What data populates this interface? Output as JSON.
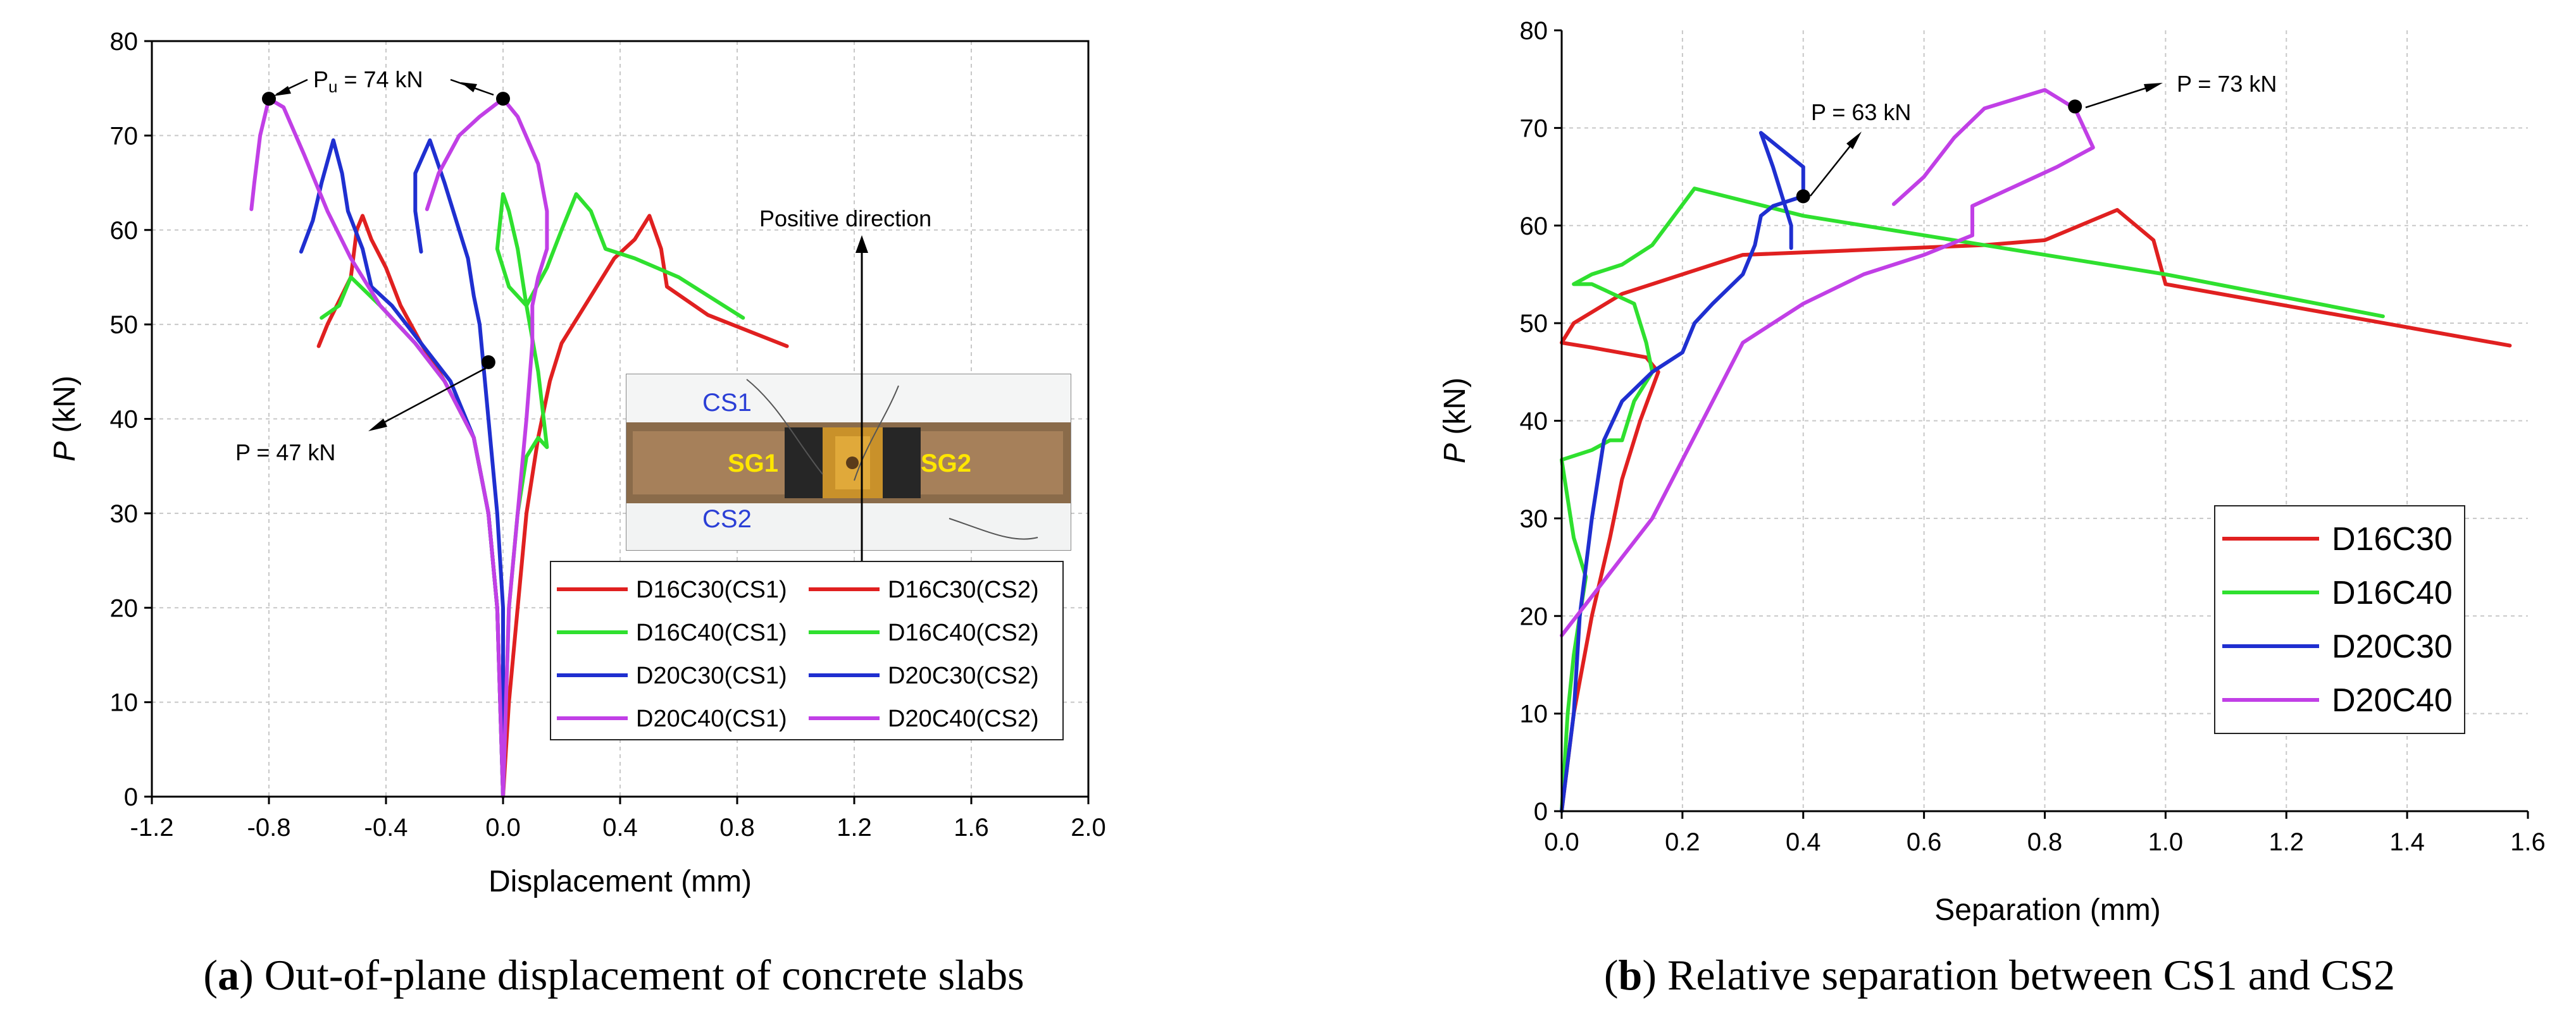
{
  "captions": {
    "a": {
      "letter": "a",
      "text": ") Out-of-plane displacement of concrete slabs"
    },
    "b": {
      "letter": "b",
      "text": ") Relative separation between CS1 and CS2"
    }
  },
  "colors": {
    "D16C30": "#e02020",
    "D16C40": "#2fe02f",
    "D20C30": "#1f2fd0",
    "D20C40": "#c13fe6"
  },
  "chart_data": [
    {
      "id": "a",
      "type": "line",
      "title": "",
      "xlabel": "Displacement (mm)",
      "ylabel_italic": "P",
      "ylabel_rest": " (kN)",
      "xlim": [
        -1.2,
        2.0
      ],
      "ylim": [
        0,
        80
      ],
      "xticks": [
        -1.2,
        -0.8,
        -0.4,
        0.0,
        0.4,
        0.8,
        1.2,
        1.6,
        2.0
      ],
      "xtick_labels": [
        "-1.2",
        "-0.8",
        "-0.4",
        "0.0",
        "0.4",
        "0.8",
        "1.2",
        "1.6",
        "2.0"
      ],
      "yticks": [
        0,
        10,
        20,
        30,
        40,
        50,
        60,
        70,
        80
      ],
      "ytick_labels": [
        "0",
        "10",
        "20",
        "30",
        "40",
        "50",
        "60",
        "70",
        "80"
      ],
      "grid": true,
      "legend_position": "lower-right",
      "series": [
        {
          "name": "D16C30(CS1)",
          "color_key": "D16C30",
          "points": [
            [
              0,
              0
            ],
            [
              -0.01,
              10
            ],
            [
              -0.02,
              20
            ],
            [
              -0.05,
              30
            ],
            [
              -0.1,
              38
            ],
            [
              -0.2,
              44
            ],
            [
              -0.28,
              48
            ],
            [
              -0.35,
              52
            ],
            [
              -0.4,
              56
            ],
            [
              -0.45,
              59
            ],
            [
              -0.48,
              61.5
            ],
            [
              -0.5,
              60
            ],
            [
              -0.52,
              55
            ],
            [
              -0.6,
              50
            ],
            [
              -0.63,
              47.7
            ]
          ]
        },
        {
          "name": "D16C30(CS2)",
          "color_key": "D16C30",
          "points": [
            [
              0,
              0
            ],
            [
              0.02,
              10
            ],
            [
              0.05,
              20
            ],
            [
              0.08,
              30
            ],
            [
              0.12,
              38
            ],
            [
              0.16,
              44
            ],
            [
              0.2,
              48
            ],
            [
              0.3,
              53
            ],
            [
              0.38,
              57
            ],
            [
              0.45,
              59
            ],
            [
              0.5,
              61.5
            ],
            [
              0.54,
              58
            ],
            [
              0.56,
              54
            ],
            [
              0.7,
              51
            ],
            [
              0.97,
              47.7
            ]
          ]
        },
        {
          "name": "D16C40(CS1)",
          "color_key": "D16C40",
          "points": [
            [
              0,
              0
            ],
            [
              -0.01,
              10
            ],
            [
              -0.02,
              20
            ],
            [
              -0.05,
              30
            ],
            [
              -0.1,
              38
            ],
            [
              -0.2,
              44
            ],
            [
              -0.3,
              48
            ],
            [
              -0.42,
              52
            ],
            [
              -0.52,
              55
            ],
            [
              -0.56,
              52
            ],
            [
              -0.62,
              50.7
            ]
          ]
        },
        {
          "name": "D16C40(CS2)",
          "color_key": "D16C40",
          "points": [
            [
              0,
              0
            ],
            [
              0.01,
              10
            ],
            [
              0.02,
              20
            ],
            [
              0.05,
              30
            ],
            [
              0.08,
              36
            ],
            [
              0.12,
              38
            ],
            [
              0.15,
              37
            ],
            [
              0.12,
              45
            ],
            [
              0.08,
              52
            ],
            [
              0.05,
              58
            ],
            [
              0.02,
              62
            ],
            [
              0,
              63.8
            ],
            [
              -0.02,
              58
            ],
            [
              0.02,
              54
            ],
            [
              0.08,
              52
            ],
            [
              0.15,
              56
            ],
            [
              0.2,
              60
            ],
            [
              0.25,
              63.8
            ],
            [
              0.3,
              62
            ],
            [
              0.35,
              58
            ],
            [
              0.45,
              57
            ],
            [
              0.6,
              55
            ],
            [
              0.82,
              50.7
            ]
          ]
        },
        {
          "name": "D20C30(CS1)",
          "color_key": "D20C30",
          "points": [
            [
              0,
              0
            ],
            [
              -0.01,
              10
            ],
            [
              -0.02,
              20
            ],
            [
              -0.05,
              30
            ],
            [
              -0.1,
              38
            ],
            [
              -0.18,
              44
            ],
            [
              -0.28,
              48
            ],
            [
              -0.38,
              52
            ],
            [
              -0.45,
              54
            ],
            [
              -0.48,
              58
            ],
            [
              -0.53,
              62
            ],
            [
              -0.55,
              66
            ],
            [
              -0.58,
              69.5
            ],
            [
              -0.62,
              65
            ],
            [
              -0.65,
              61
            ],
            [
              -0.69,
              57.7
            ]
          ]
        },
        {
          "name": "D20C30(CS2)",
          "color_key": "D20C30",
          "points": [
            [
              0,
              0
            ],
            [
              0,
              10
            ],
            [
              0,
              20
            ],
            [
              -0.02,
              30
            ],
            [
              -0.05,
              40
            ],
            [
              -0.08,
              50
            ],
            [
              -0.1,
              53
            ],
            [
              -0.12,
              57
            ],
            [
              -0.15,
              60
            ],
            [
              -0.2,
              65
            ],
            [
              -0.25,
              69.5
            ],
            [
              -0.3,
              66
            ],
            [
              -0.3,
              62
            ],
            [
              -0.28,
              57.7
            ]
          ]
        },
        {
          "name": "D20C40(CS1)",
          "color_key": "D20C40",
          "points": [
            [
              0,
              0
            ],
            [
              -0.01,
              10
            ],
            [
              -0.02,
              20
            ],
            [
              -0.05,
              30
            ],
            [
              -0.1,
              38
            ],
            [
              -0.2,
              44
            ],
            [
              -0.3,
              48
            ],
            [
              -0.42,
              52
            ],
            [
              -0.52,
              57
            ],
            [
              -0.6,
              62
            ],
            [
              -0.68,
              68
            ],
            [
              -0.75,
              73
            ],
            [
              -0.8,
              73.9
            ],
            [
              -0.83,
              70
            ],
            [
              -0.85,
              65
            ],
            [
              -0.86,
              62.2
            ]
          ]
        },
        {
          "name": "D20C40(CS2)",
          "color_key": "D20C40",
          "points": [
            [
              0,
              0
            ],
            [
              0.01,
              10
            ],
            [
              0.02,
              20
            ],
            [
              0.05,
              30
            ],
            [
              0.08,
              40
            ],
            [
              0.1,
              48
            ],
            [
              0.1,
              52
            ],
            [
              0.12,
              55
            ],
            [
              0.15,
              58
            ],
            [
              0.15,
              62
            ],
            [
              0.12,
              67
            ],
            [
              0.05,
              72
            ],
            [
              0,
              73.9
            ],
            [
              -0.08,
              72
            ],
            [
              -0.15,
              70
            ],
            [
              -0.22,
              66
            ],
            [
              -0.26,
              62.2
            ]
          ]
        }
      ],
      "points_marked": [
        [
          -0.8,
          73.9
        ],
        [
          0.0,
          73.9
        ],
        [
          -0.05,
          46
        ]
      ],
      "annotations": {
        "pu_prefix": "P",
        "pu_sub": "u",
        "pu_value": " = 74 kN",
        "p47": "P = 47 kN",
        "positive_direction": "Positive direction"
      },
      "photo_labels": {
        "cs1": "CS1",
        "cs2": "CS2",
        "sg1": "SG1",
        "sg2": "SG2"
      }
    },
    {
      "id": "b",
      "type": "line",
      "title": "",
      "xlabel": "Separation (mm)",
      "ylabel_italic": "P",
      "ylabel_rest": " (kN)",
      "xlim": [
        0,
        1.6
      ],
      "ylim": [
        0,
        80
      ],
      "xticks": [
        0,
        0.2,
        0.4,
        0.6,
        0.8,
        1.0,
        1.2,
        1.4,
        1.6
      ],
      "xtick_labels": [
        "0.0",
        "0.2",
        "0.4",
        "0.6",
        "0.8",
        "1.0",
        "1.2",
        "1.4",
        "1.6"
      ],
      "yticks": [
        0,
        10,
        20,
        30,
        40,
        50,
        60,
        70,
        80
      ],
      "ytick_labels": [
        "0",
        "10",
        "20",
        "30",
        "40",
        "50",
        "60",
        "70",
        "80"
      ],
      "grid": true,
      "legend_position": "lower-right",
      "series": [
        {
          "name": "D16C30",
          "color_key": "D16C30",
          "points": [
            [
              0,
              0
            ],
            [
              0.02,
              10
            ],
            [
              0.05,
              20
            ],
            [
              0.08,
              28
            ],
            [
              0.1,
              34
            ],
            [
              0.13,
              40
            ],
            [
              0.16,
              45
            ],
            [
              0.14,
              46.5
            ],
            [
              0.05,
              47.5
            ],
            [
              0,
              48
            ],
            [
              0.02,
              50
            ],
            [
              0.1,
              53
            ],
            [
              0.2,
              55
            ],
            [
              0.3,
              57
            ],
            [
              0.5,
              57.5
            ],
            [
              0.7,
              58
            ],
            [
              0.8,
              58.5
            ],
            [
              0.92,
              61.6
            ],
            [
              0.98,
              58.5
            ],
            [
              1.0,
              54
            ],
            [
              1.57,
              47.7
            ]
          ]
        },
        {
          "name": "D16C40",
          "color_key": "D16C40",
          "points": [
            [
              0,
              0
            ],
            [
              0.01,
              10
            ],
            [
              0.02,
              16
            ],
            [
              0.03,
              20
            ],
            [
              0.04,
              24
            ],
            [
              0.02,
              28
            ],
            [
              0.01,
              32
            ],
            [
              0.0,
              36
            ],
            [
              0.05,
              37
            ],
            [
              0.08,
              38
            ],
            [
              0.1,
              38
            ],
            [
              0.12,
              42
            ],
            [
              0.15,
              45
            ],
            [
              0.14,
              48
            ],
            [
              0.12,
              52
            ],
            [
              0.05,
              54
            ],
            [
              0.02,
              54
            ],
            [
              0.05,
              55
            ],
            [
              0.1,
              56
            ],
            [
              0.15,
              58
            ],
            [
              0.22,
              63.8
            ],
            [
              0.4,
              61
            ],
            [
              0.6,
              59
            ],
            [
              0.8,
              57
            ],
            [
              1.0,
              55
            ],
            [
              1.36,
              50.7
            ]
          ]
        },
        {
          "name": "D20C30",
          "color_key": "D20C30",
          "points": [
            [
              0,
              0
            ],
            [
              0.01,
              5
            ],
            [
              0.02,
              10
            ],
            [
              0.03,
              20
            ],
            [
              0.05,
              30
            ],
            [
              0.07,
              38
            ],
            [
              0.1,
              42
            ],
            [
              0.15,
              45
            ],
            [
              0.2,
              47
            ],
            [
              0.22,
              50
            ],
            [
              0.25,
              52
            ],
            [
              0.3,
              55
            ],
            [
              0.32,
              58
            ],
            [
              0.33,
              61
            ],
            [
              0.35,
              62
            ],
            [
              0.4,
              63
            ],
            [
              0.4,
              66
            ],
            [
              0.36,
              68
            ],
            [
              0.33,
              69.5
            ],
            [
              0.35,
              66
            ],
            [
              0.38,
              60
            ],
            [
              0.38,
              57.7
            ]
          ]
        },
        {
          "name": "D20C40",
          "color_key": "D20C40",
          "points": [
            [
              0,
              18
            ],
            [
              0.05,
              22
            ],
            [
              0.1,
              26
            ],
            [
              0.15,
              30
            ],
            [
              0.2,
              36
            ],
            [
              0.25,
              42
            ],
            [
              0.3,
              48
            ],
            [
              0.4,
              52
            ],
            [
              0.5,
              55
            ],
            [
              0.6,
              57
            ],
            [
              0.68,
              59
            ],
            [
              0.68,
              62
            ],
            [
              0.75,
              64
            ],
            [
              0.82,
              66
            ],
            [
              0.88,
              68
            ],
            [
              0.85,
              72
            ],
            [
              0.8,
              73.9
            ],
            [
              0.7,
              72
            ],
            [
              0.65,
              69
            ],
            [
              0.6,
              65
            ],
            [
              0.55,
              62.2
            ]
          ]
        }
      ],
      "points_marked": [
        [
          0.4,
          63
        ],
        [
          0.85,
          72.2
        ]
      ],
      "annotations": {
        "p63": "P = 63 kN",
        "p73": "P = 73 kN"
      }
    }
  ]
}
